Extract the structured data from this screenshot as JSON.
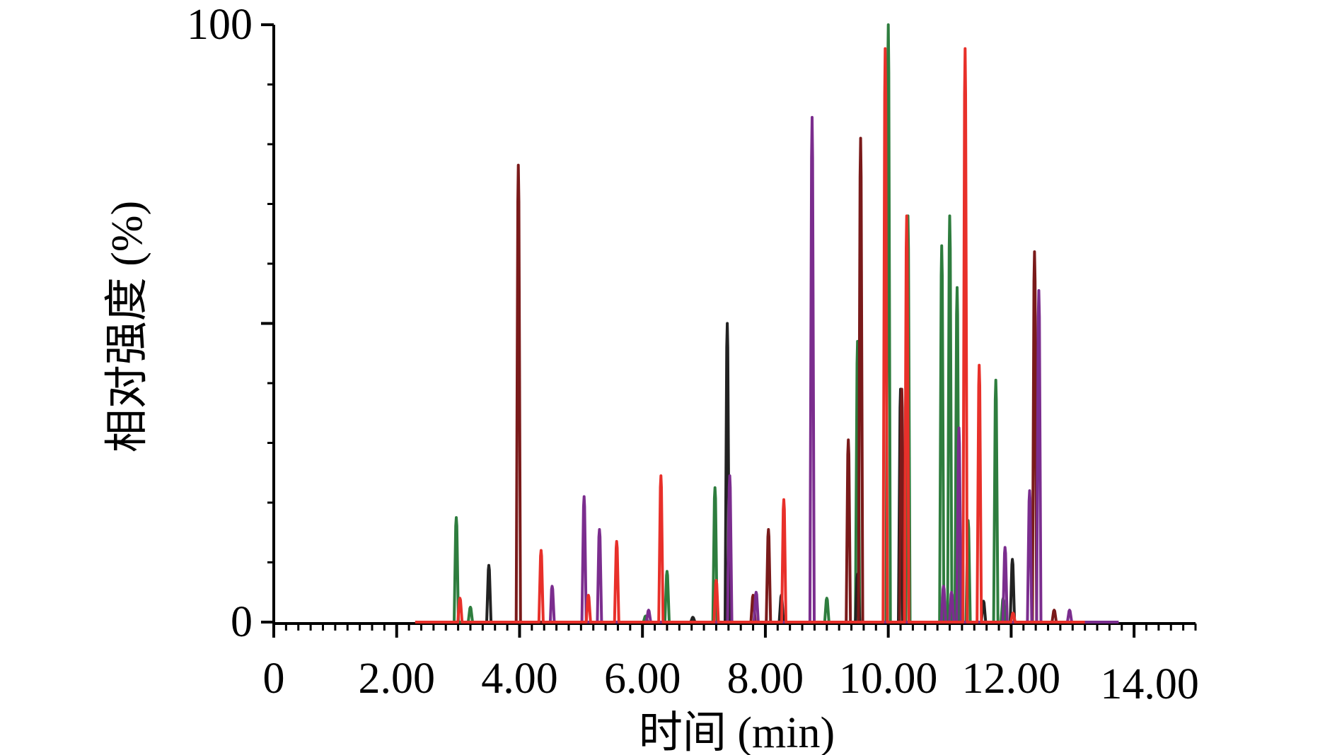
{
  "chart_data": {
    "type": "line",
    "title": "",
    "xlabel": "时间 (min)",
    "ylabel": "相对强度 (%)",
    "xlim": [
      0,
      15
    ],
    "ylim": [
      0,
      100
    ],
    "x_ticks": [
      0,
      2,
      4,
      6,
      8,
      10,
      12,
      14
    ],
    "x_tick_labels": [
      "0",
      "2.00",
      "4.00",
      "6.00",
      "8.00",
      "10.00",
      "12.00",
      "14.00"
    ],
    "y_tick_labels": [
      {
        "value": 0,
        "label": "0"
      },
      {
        "value": 100,
        "label": "100"
      }
    ],
    "grid": false,
    "legend": "none",
    "series": [
      {
        "color": "#2e7d3e",
        "range": [
          6.0,
          12.4
        ],
        "peaks": [
          [
            2.97,
            17.5
          ],
          [
            3.2,
            2.5
          ],
          [
            6.05,
            1.0
          ],
          [
            6.4,
            8.5
          ],
          [
            7.18,
            22.5
          ],
          [
            9.0,
            4.0
          ],
          [
            9.5,
            47.0
          ],
          [
            10.0,
            100.0
          ],
          [
            10.32,
            68.0
          ],
          [
            10.87,
            63.0
          ],
          [
            11.0,
            68.0
          ],
          [
            11.12,
            56.0
          ],
          [
            11.3,
            17.0
          ],
          [
            11.75,
            40.5
          ],
          [
            11.87,
            4.0
          ]
        ]
      },
      {
        "color": "#222222",
        "range": [
          6.6,
          12.15
        ],
        "peaks": [
          [
            3.5,
            9.5
          ],
          [
            6.82,
            0.8
          ],
          [
            7.38,
            50.0
          ],
          [
            8.26,
            4.5
          ],
          [
            9.5,
            8.0
          ],
          [
            10.2,
            39.0
          ],
          [
            11.55,
            3.5
          ],
          [
            12.02,
            10.5
          ]
        ]
      },
      {
        "color": "#7a1a1a",
        "range": [
          3.5,
          13.4
        ],
        "peaks": [
          [
            3.98,
            76.5
          ],
          [
            7.8,
            4.5
          ],
          [
            8.05,
            15.5
          ],
          [
            9.35,
            30.5
          ],
          [
            9.55,
            81.0
          ],
          [
            10.22,
            39.0
          ],
          [
            12.38,
            62.0
          ],
          [
            12.7,
            2.0
          ]
        ]
      },
      {
        "color": "#7b2d8e",
        "range": [
          4.5,
          13.75
        ],
        "peaks": [
          [
            4.53,
            6.0
          ],
          [
            5.05,
            21.0
          ],
          [
            5.3,
            15.5
          ],
          [
            6.1,
            2.0
          ],
          [
            7.42,
            24.5
          ],
          [
            7.85,
            5.0
          ],
          [
            8.76,
            84.5
          ],
          [
            10.9,
            6.0
          ],
          [
            11.03,
            5.0
          ],
          [
            11.15,
            32.5
          ],
          [
            11.9,
            12.5
          ],
          [
            12.3,
            22.0
          ],
          [
            12.45,
            55.5
          ],
          [
            12.95,
            2.0
          ]
        ]
      },
      {
        "color": "#e8302a",
        "range": [
          2.3,
          13.2
        ],
        "peaks": [
          [
            3.03,
            4.0
          ],
          [
            4.35,
            12.0
          ],
          [
            5.12,
            4.5
          ],
          [
            5.58,
            13.5
          ],
          [
            6.3,
            24.5
          ],
          [
            7.2,
            7.0
          ],
          [
            8.3,
            20.5
          ],
          [
            9.95,
            96.0
          ],
          [
            10.3,
            68.0
          ],
          [
            11.25,
            96.0
          ],
          [
            11.48,
            43.0
          ],
          [
            12.03,
            1.5
          ]
        ]
      }
    ]
  }
}
